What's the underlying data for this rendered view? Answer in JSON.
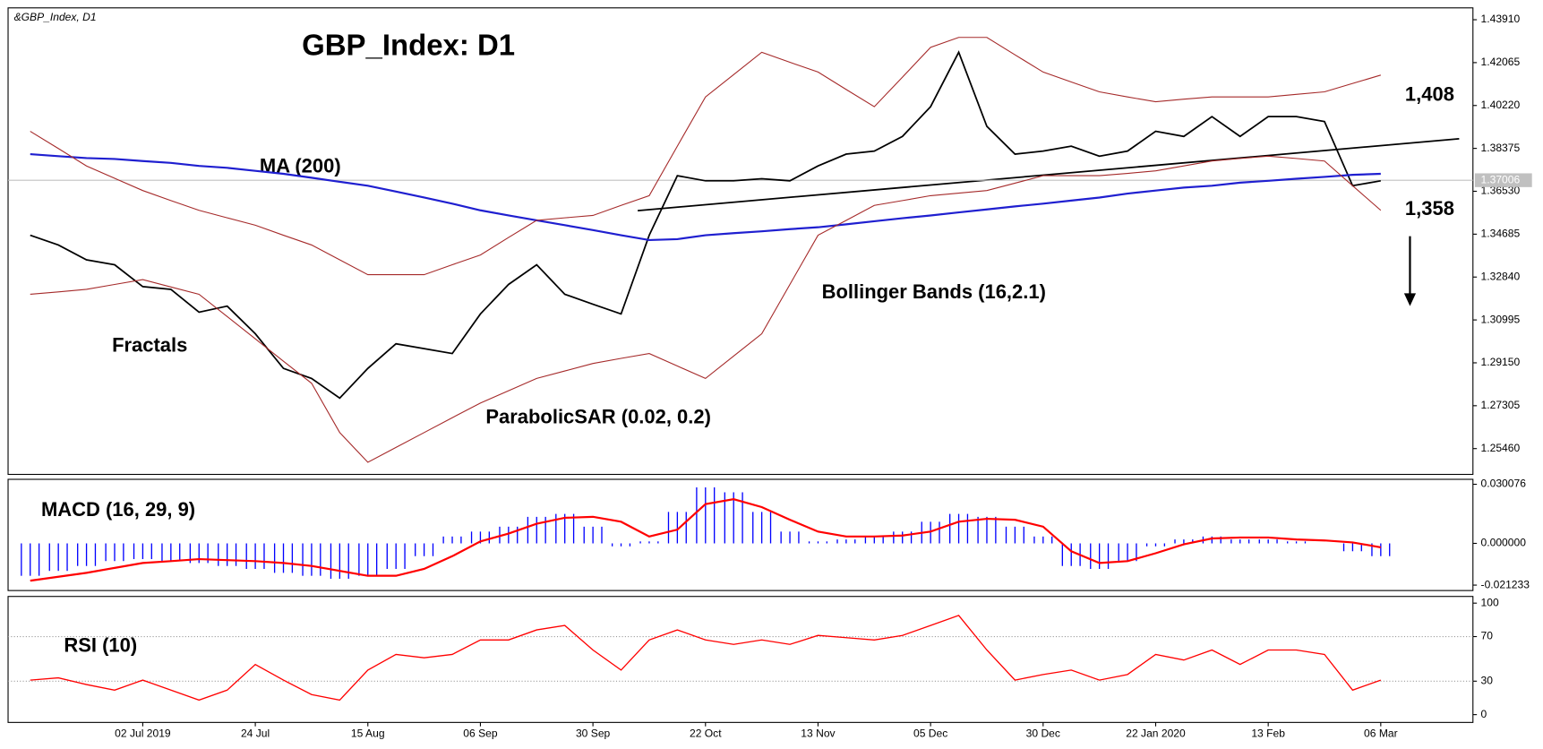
{
  "chart_data": [
    {
      "type": "line",
      "title": "GBP_Index: D1",
      "symbol": "&GBP_Index, D1",
      "categories": [
        null,
        null,
        null,
        null,
        "02 Jul 2019",
        null,
        null,
        null,
        "24 Jul",
        null,
        null,
        null,
        "15 Aug",
        null,
        null,
        null,
        "06 Sep",
        null,
        null,
        null,
        "30 Sep",
        null,
        null,
        null,
        "22 Oct",
        null,
        null,
        null,
        "13 Nov",
        null,
        null,
        null,
        "05 Dec",
        null,
        null,
        null,
        "30 Dec",
        null,
        null,
        null,
        "22 Jan 2020",
        null,
        null,
        null,
        "13 Feb",
        null,
        null,
        null,
        "06 Mar"
      ],
      "series": [
        {
          "color": "#000000",
          "values": [
            1.3464,
            1.3422,
            1.3358,
            1.3337,
            1.3243,
            1.3231,
            1.3133,
            1.3159,
            1.304,
            1.2891,
            1.2848,
            1.2763,
            1.2891,
            1.2997,
            1.2976,
            1.2955,
            1.3125,
            1.3252,
            1.3337,
            1.321,
            1.3167,
            1.3125,
            1.3464,
            1.372,
            1.3698,
            1.3698,
            1.3707,
            1.3698,
            1.3762,
            1.3813,
            1.3826,
            1.3889,
            1.4017,
            1.4251,
            1.3932,
            1.3813,
            1.3826,
            1.3847,
            1.3804,
            1.3826,
            1.3911,
            1.3889,
            1.3974,
            1.3889,
            1.3974,
            1.3974,
            1.3953,
            1.3677,
            1.3698
          ]
        },
        {
          "color": "#1f1fd0",
          "values": [
            1.3813,
            1.3804,
            1.3796,
            1.3792,
            1.3783,
            1.3775,
            1.3762,
            1.3754,
            1.3741,
            1.3728,
            1.3711,
            1.3694,
            1.3677,
            1.3652,
            1.3626,
            1.36,
            1.3571,
            1.3549,
            1.3528,
            1.3507,
            1.3486,
            1.3464,
            1.3443,
            1.3447,
            1.3464,
            1.3473,
            1.3481,
            1.349,
            1.3498,
            1.3511,
            1.3524,
            1.3537,
            1.3549,
            1.3562,
            1.3575,
            1.3588,
            1.36,
            1.3613,
            1.3626,
            1.3643,
            1.3656,
            1.3669,
            1.3677,
            1.369,
            1.3698,
            1.3707,
            1.3715,
            1.3724,
            1.3728
          ]
        },
        {
          "color": "#a52a2a",
          "values": [
            1.3911,
            1.3837,
            1.3762,
            1.3709,
            1.3656,
            1.3613,
            1.3571,
            1.3539,
            1.3507,
            1.3464,
            1.3422,
            1.3358,
            1.3294,
            1.3294,
            1.3294,
            1.3337,
            1.3379,
            1.3454,
            1.3528,
            1.3539,
            1.3549,
            1.3592,
            1.3634,
            1.3847,
            1.4059,
            1.4155,
            1.4251,
            1.4208,
            1.4166,
            1.4091,
            1.4017,
            1.4144,
            1.4272,
            1.4315,
            1.4315,
            1.424,
            1.4166,
            1.4123,
            1.4081,
            1.4059,
            1.4038,
            1.4049,
            1.4059,
            1.4059,
            1.4059,
            1.407,
            1.4081,
            1.4117,
            1.4153
          ]
        },
        {
          "color": "#a52a2a",
          "values": [
            1.321,
            1.322,
            1.3231,
            1.3252,
            1.3273,
            1.3241,
            1.321,
            1.3114,
            1.3018,
            1.2922,
            1.2827,
            1.2615,
            1.2487,
            1.2551,
            1.2615,
            1.2679,
            1.2742,
            1.2795,
            1.2848,
            1.288,
            1.2912,
            1.2934,
            1.2955,
            1.2901,
            1.2848,
            1.2944,
            1.304,
            1.3252,
            1.3464,
            1.3528,
            1.3592,
            1.3613,
            1.3634,
            1.3645,
            1.3656,
            1.3688,
            1.372,
            1.372,
            1.372,
            1.373,
            1.3741,
            1.3762,
            1.3783,
            1.3794,
            1.3804,
            1.3794,
            1.3783,
            1.3677,
            1.3571
          ]
        }
      ],
      "annotations": [
        "MA (200)",
        "Fractals",
        "ParabolicSAR (0.02, 0.2)",
        "Bollinger Bands (16,2.1)",
        "1,408",
        "1,358"
      ],
      "last_price": {
        "value": 1.37006,
        "label": "1.37006"
      },
      "ylim": [
        1.2435,
        1.4442
      ],
      "yticks": [
        {
          "value": 1.4391,
          "label": "1.43910"
        },
        {
          "value": 1.42065,
          "label": "1.42065"
        },
        {
          "value": 1.4022,
          "label": "1.40220"
        },
        {
          "value": 1.38375,
          "label": "1.38375"
        },
        {
          "value": 1.3653,
          "label": "1.36530"
        },
        {
          "value": 1.34685,
          "label": "1.34685"
        },
        {
          "value": 1.3284,
          "label": "1.32840"
        },
        {
          "value": 1.30995,
          "label": "1.30995"
        },
        {
          "value": 1.2915,
          "label": "1.29150"
        },
        {
          "value": 1.27305,
          "label": "1.27305"
        },
        {
          "value": 1.2546,
          "label": "1.25460"
        }
      ]
    },
    {
      "type": "macd",
      "title": "MACD (16, 29, 9)",
      "histogram": {
        "color": "#0000ff",
        "values": [
          -0.0165,
          -0.014,
          -0.0115,
          -0.009,
          -0.008,
          -0.009,
          -0.01,
          -0.0115,
          -0.013,
          -0.015,
          -0.0165,
          -0.018,
          -0.0165,
          -0.013,
          -0.0065,
          0.0035,
          0.006,
          0.0085,
          0.0135,
          0.015,
          0.0085,
          -0.0015,
          0.001,
          0.016,
          0.0285,
          0.026,
          0.016,
          0.006,
          0.001,
          0.002,
          0.0035,
          0.006,
          0.011,
          0.015,
          0.0135,
          0.0085,
          0.0035,
          -0.0115,
          -0.013,
          -0.009,
          -0.0015,
          0.002,
          0.0035,
          0.002,
          0.002,
          0.001,
          0,
          -0.004,
          -0.0065
        ]
      },
      "signal": {
        "color": "#ff0000",
        "values": [
          -0.019,
          -0.017,
          -0.015,
          -0.0125,
          -0.01,
          -0.009,
          -0.008,
          -0.0085,
          -0.009,
          -0.01,
          -0.0115,
          -0.014,
          -0.0165,
          -0.0165,
          -0.013,
          -0.0065,
          0.001,
          0.005,
          0.01,
          0.013,
          0.0135,
          0.011,
          0.0035,
          0.007,
          0.02,
          0.0225,
          0.0185,
          0.012,
          0.006,
          0.0035,
          0.0035,
          0.004,
          0.006,
          0.011,
          0.0125,
          0.012,
          0.0085,
          -0.004,
          -0.01,
          -0.009,
          -0.005,
          -0.0005,
          0.0025,
          0.003,
          0.003,
          0.002,
          0.0015,
          0.0005,
          -0.002
        ]
      },
      "ylim": [
        -0.024,
        0.0326
      ],
      "yticks": [
        {
          "value": 0.030076,
          "label": "0.030076"
        },
        {
          "value": 0,
          "label": "0.000000"
        },
        {
          "value": -0.021233,
          "label": "-0.021233"
        }
      ]
    },
    {
      "type": "rsi",
      "title": "RSI (10)",
      "color": "#ff0000",
      "values": [
        31,
        33,
        27,
        22,
        31,
        22,
        13,
        22,
        45,
        31,
        18,
        13,
        40,
        54,
        51,
        54,
        67,
        67,
        76,
        80,
        58,
        40,
        67,
        76,
        67,
        63,
        67,
        63,
        71,
        69,
        67,
        71,
        80,
        89,
        58,
        31,
        36,
        40,
        31,
        36,
        54,
        49,
        58,
        45,
        58,
        58,
        54,
        22,
        31
      ],
      "ylim": [
        -7,
        106
      ],
      "yticks": [
        100,
        70,
        30,
        0
      ]
    }
  ]
}
